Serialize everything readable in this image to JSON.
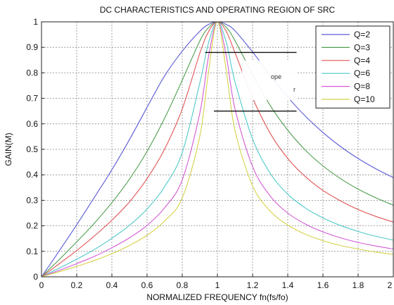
{
  "chart_data": {
    "type": "line",
    "title": "DC CHARACTERISTICS AND OPERATING REGION OF SRC",
    "xlabel": "NORMALIZED FREQUENCY fn(fs/fo)",
    "ylabel": "GAIN(M)",
    "xlim": [
      0,
      2
    ],
    "ylim": [
      0,
      1
    ],
    "xticks": [
      0,
      0.2,
      0.4,
      0.6,
      0.8,
      1,
      1.2,
      1.4,
      1.6,
      1.8,
      2
    ],
    "xtick_labels": [
      "0",
      "0.2",
      "0.4",
      "0.6",
      "0.8",
      "1",
      "1.2",
      "1.4",
      "1.6",
      "1.8",
      "2"
    ],
    "yticks": [
      0,
      0.1,
      0.2,
      0.3,
      0.4,
      0.5,
      0.6,
      0.7,
      0.8,
      0.9,
      1
    ],
    "ytick_labels": [
      "0",
      "0.1",
      "0.2",
      "0.3",
      "0.4",
      "0.5",
      "0.6",
      "0.7",
      "0.8",
      "0.9",
      "1"
    ],
    "grid": true,
    "legend_position": "top-right",
    "colors": {
      "Q=2": "#5a5ad8",
      "Q=3": "#4f9f4f",
      "Q=4": "#e05555",
      "Q=6": "#4fc9c9",
      "Q=8": "#d45ad4",
      "Q=10": "#d6d24a"
    },
    "x": [
      0.05,
      0.1,
      0.2,
      0.3,
      0.4,
      0.5,
      0.6,
      0.7,
      0.8,
      0.9,
      0.95,
      1.0,
      1.05,
      1.1,
      1.2,
      1.3,
      1.4,
      1.5,
      1.6,
      1.7,
      1.8,
      1.9,
      2.0
    ],
    "series": [
      {
        "name": "Q=2",
        "values": [
          0.05,
          0.101,
          0.204,
          0.311,
          0.42,
          0.538,
          0.665,
          0.788,
          0.885,
          0.963,
          0.99,
          1.0,
          0.99,
          0.965,
          0.882,
          0.79,
          0.705,
          0.63,
          0.566,
          0.511,
          0.464,
          0.424,
          0.389
        ]
      },
      {
        "name": "Q=3",
        "values": [
          0.034,
          0.067,
          0.137,
          0.21,
          0.291,
          0.383,
          0.492,
          0.622,
          0.771,
          0.925,
          0.978,
          1.0,
          0.979,
          0.926,
          0.794,
          0.672,
          0.575,
          0.497,
          0.435,
          0.385,
          0.344,
          0.31,
          0.281
        ]
      },
      {
        "name": "Q=4",
        "values": [
          0.025,
          0.051,
          0.103,
          0.16,
          0.222,
          0.294,
          0.385,
          0.501,
          0.658,
          0.877,
          0.962,
          1.0,
          0.963,
          0.879,
          0.702,
          0.563,
          0.464,
          0.393,
          0.339,
          0.298,
          0.264,
          0.237,
          0.215
        ]
      },
      {
        "name": "Q=6",
        "values": [
          0.017,
          0.034,
          0.069,
          0.107,
          0.151,
          0.202,
          0.266,
          0.354,
          0.487,
          0.76,
          0.919,
          1.0,
          0.921,
          0.765,
          0.541,
          0.406,
          0.324,
          0.27,
          0.231,
          0.201,
          0.178,
          0.159,
          0.144
        ]
      },
      {
        "name": "Q=8",
        "values": [
          0.013,
          0.025,
          0.052,
          0.08,
          0.114,
          0.153,
          0.202,
          0.271,
          0.38,
          0.642,
          0.866,
          1.0,
          0.868,
          0.658,
          0.432,
          0.317,
          0.25,
          0.207,
          0.176,
          0.153,
          0.135,
          0.121,
          0.109
        ]
      },
      {
        "name": "Q=10",
        "values": [
          0.01,
          0.02,
          0.041,
          0.064,
          0.091,
          0.123,
          0.163,
          0.219,
          0.309,
          0.551,
          0.807,
          1.0,
          0.81,
          0.574,
          0.357,
          0.258,
          0.203,
          0.167,
          0.142,
          0.123,
          0.109,
          0.097,
          0.088
        ]
      }
    ],
    "annotation_lines": [
      {
        "x": [
          0.93,
          1.45
        ],
        "y": 0.88
      },
      {
        "x": [
          0.98,
          1.45
        ],
        "y": 0.65
      }
    ],
    "annotation_text": [
      "ope",
      "r"
    ]
  }
}
